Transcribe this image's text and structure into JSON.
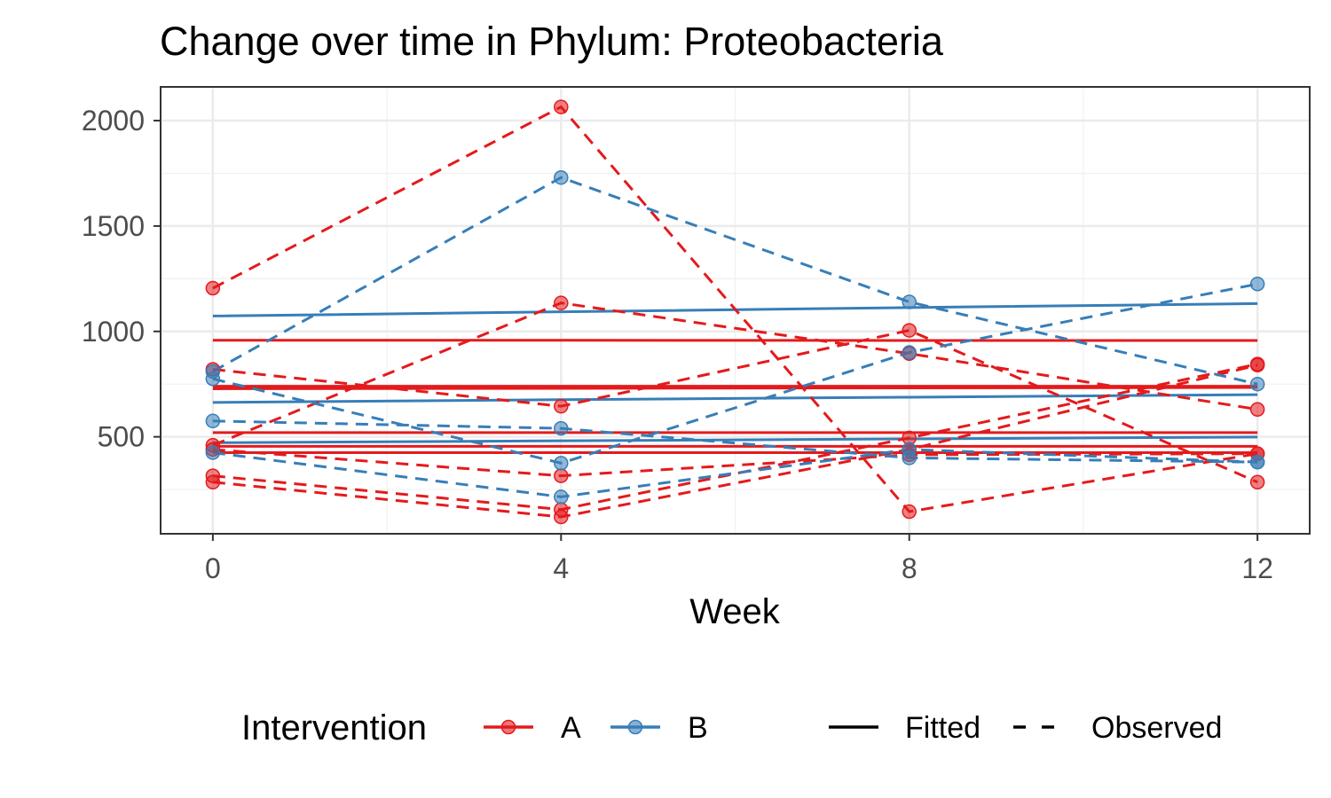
{
  "chart_data": {
    "type": "line",
    "title": "Change over time in Phylum: Proteobacteria",
    "xlabel": "Week",
    "ylabel": "",
    "x_ticks": [
      0,
      4,
      8,
      12
    ],
    "y_ticks": [
      500,
      1000,
      1500,
      2000
    ],
    "xlim": [
      -0.6,
      12.6
    ],
    "ylim": [
      40,
      2160
    ],
    "grid": true,
    "legend_position": "bottom",
    "legend": {
      "color_title": "Intervention",
      "color_items": [
        {
          "label": "A",
          "color": "#E41A1C"
        },
        {
          "label": "B",
          "color": "#377EB8"
        }
      ],
      "linetype_items": [
        {
          "label": "Fitted",
          "dash": "solid"
        },
        {
          "label": "Observed",
          "dash": "dashed"
        }
      ]
    },
    "x": [
      0,
      4,
      8,
      12
    ],
    "observed": [
      {
        "group": "A",
        "values": [
          1205,
          2065,
          145,
          420
        ]
      },
      {
        "group": "A",
        "values": [
          460,
          1135,
          895,
          630
        ]
      },
      {
        "group": "A",
        "values": [
          820,
          645,
          1005,
          285
        ]
      },
      {
        "group": "A",
        "values": [
          315,
          155,
          495,
          845
        ]
      },
      {
        "group": "A",
        "values": [
          285,
          120,
          440,
          840
        ]
      },
      {
        "group": "A",
        "values": [
          440,
          315,
          415,
          420
        ]
      },
      {
        "group": "B",
        "values": [
          810,
          1730,
          1140,
          750
        ]
      },
      {
        "group": "B",
        "values": [
          775,
          375,
          900,
          1225
        ]
      },
      {
        "group": "B",
        "values": [
          575,
          540,
          400,
          380
        ]
      },
      {
        "group": "B",
        "values": [
          425,
          215,
          440,
          380
        ]
      }
    ],
    "fitted": [
      {
        "group": "B",
        "values": [
          1073,
          1093,
          1113,
          1132
        ]
      },
      {
        "group": "A",
        "values": [
          958,
          958,
          957,
          957
        ]
      },
      {
        "group": "A",
        "values": [
          740,
          740,
          740,
          740
        ]
      },
      {
        "group": "A",
        "values": [
          728,
          730,
          732,
          734
        ]
      },
      {
        "group": "B",
        "values": [
          663,
          676,
          688,
          700
        ]
      },
      {
        "group": "A",
        "values": [
          520,
          520,
          520,
          520
        ]
      },
      {
        "group": "B",
        "values": [
          472,
          481,
          490,
          499
        ]
      },
      {
        "group": "A",
        "values": [
          455,
          455,
          455,
          455
        ]
      },
      {
        "group": "A",
        "values": [
          425,
          425,
          425,
          425
        ]
      }
    ]
  }
}
